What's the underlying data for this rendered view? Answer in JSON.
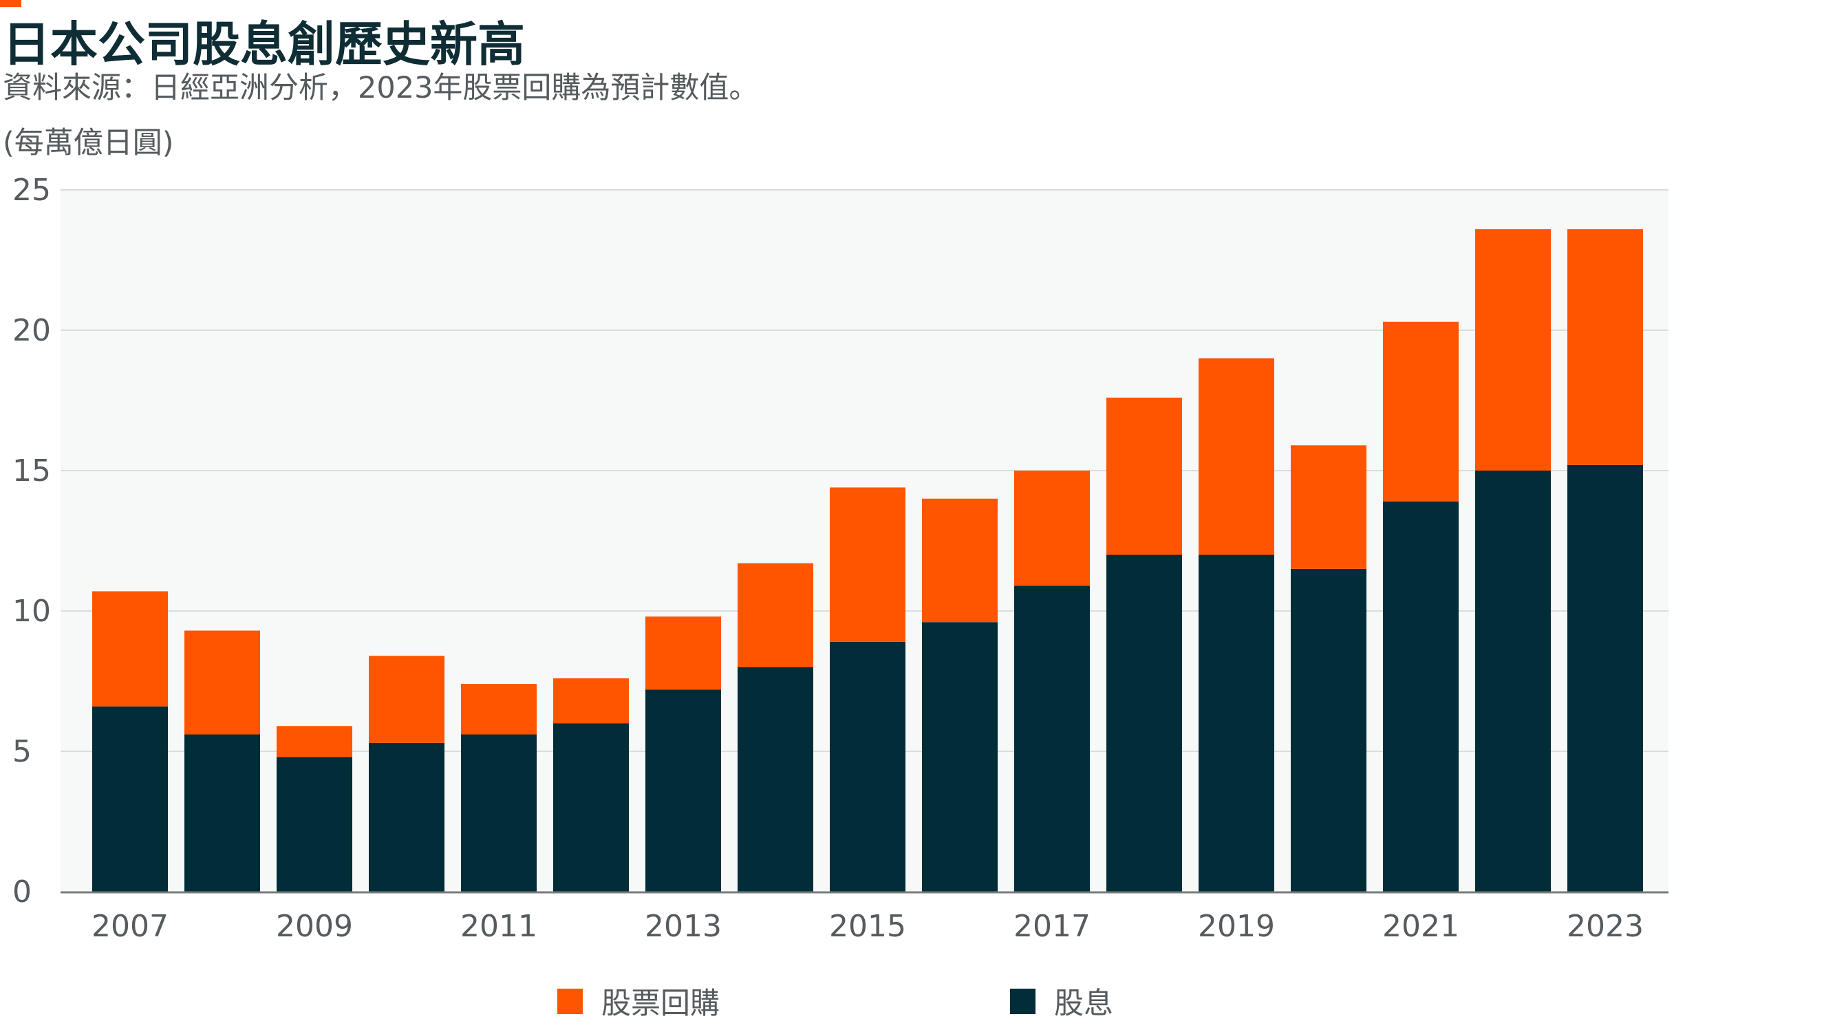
{
  "title": "日本公司股息創歷史新高",
  "subtitle": "資料來源：日經亞洲分析，2023年股票回購為預計數值。",
  "unit": "(每萬億日圓)",
  "colors": {
    "accent": "#ff5500",
    "buyback": "#ff5500",
    "dividend": "#002d37",
    "plot_bg": "#f7f8f8",
    "grid": "#d9dddd",
    "axis": "#777b7c",
    "title": "#0f2d35",
    "label": "#555b5e"
  },
  "legend": {
    "buyback_label": "股票回購",
    "dividend_label": "股息"
  },
  "chart_data": {
    "type": "bar",
    "stacked": true,
    "categories": [
      "2007",
      "2008",
      "2009",
      "2010",
      "2011",
      "2012",
      "2013",
      "2014",
      "2015",
      "2016",
      "2017",
      "2018",
      "2019",
      "2020",
      "2021",
      "2022",
      "2023"
    ],
    "x_tick_labels": [
      "2007",
      "2009",
      "2011",
      "2013",
      "2015",
      "2017",
      "2019",
      "2021",
      "2023"
    ],
    "series": [
      {
        "name": "股息",
        "values": [
          6.6,
          5.6,
          4.8,
          5.3,
          5.6,
          6.0,
          7.2,
          8.0,
          8.9,
          9.6,
          10.9,
          12.0,
          12.0,
          11.5,
          13.9,
          15.0,
          15.2
        ]
      },
      {
        "name": "股票回購",
        "values": [
          4.1,
          3.7,
          1.1,
          3.1,
          1.8,
          1.6,
          2.6,
          3.7,
          5.5,
          4.4,
          4.1,
          5.6,
          7.0,
          4.4,
          6.4,
          8.6,
          8.4
        ]
      }
    ],
    "y_ticks": [
      "0",
      "5",
      "10",
      "15",
      "20",
      "25"
    ],
    "ylim": [
      0,
      25
    ],
    "ylabel": "(每萬億日圓)",
    "xlabel": "",
    "grid": true,
    "legend_position": "bottom"
  }
}
